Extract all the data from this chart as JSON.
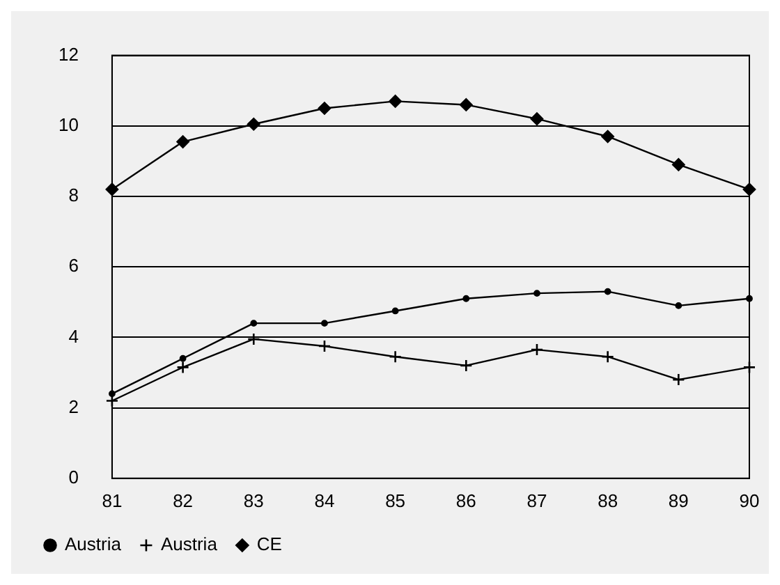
{
  "chart_data": {
    "type": "line",
    "categories": [
      "81",
      "82",
      "83",
      "84",
      "85",
      "86",
      "87",
      "88",
      "89",
      "90"
    ],
    "series": [
      {
        "name": "Austria",
        "color": "#000000",
        "marker": "circle",
        "values": [
          2.4,
          3.4,
          4.4,
          4.4,
          4.75,
          5.1,
          5.25,
          5.3,
          4.9,
          5.1
        ]
      },
      {
        "name": "Austria",
        "color": "#000000",
        "marker": "cross",
        "values": [
          2.2,
          3.15,
          3.95,
          3.75,
          3.45,
          3.2,
          3.65,
          3.45,
          2.8,
          3.15
        ]
      },
      {
        "name": "CE",
        "color": "#000000",
        "marker": "diamond",
        "values": [
          8.2,
          9.55,
          10.05,
          10.5,
          10.7,
          10.6,
          10.2,
          9.7,
          8.9,
          8.2
        ]
      }
    ],
    "ylim": [
      0,
      12
    ],
    "yticks": [
      0,
      2,
      4,
      6,
      8,
      10,
      12
    ],
    "grid": "y",
    "legend": "bottom left",
    "line_style": "solid"
  }
}
